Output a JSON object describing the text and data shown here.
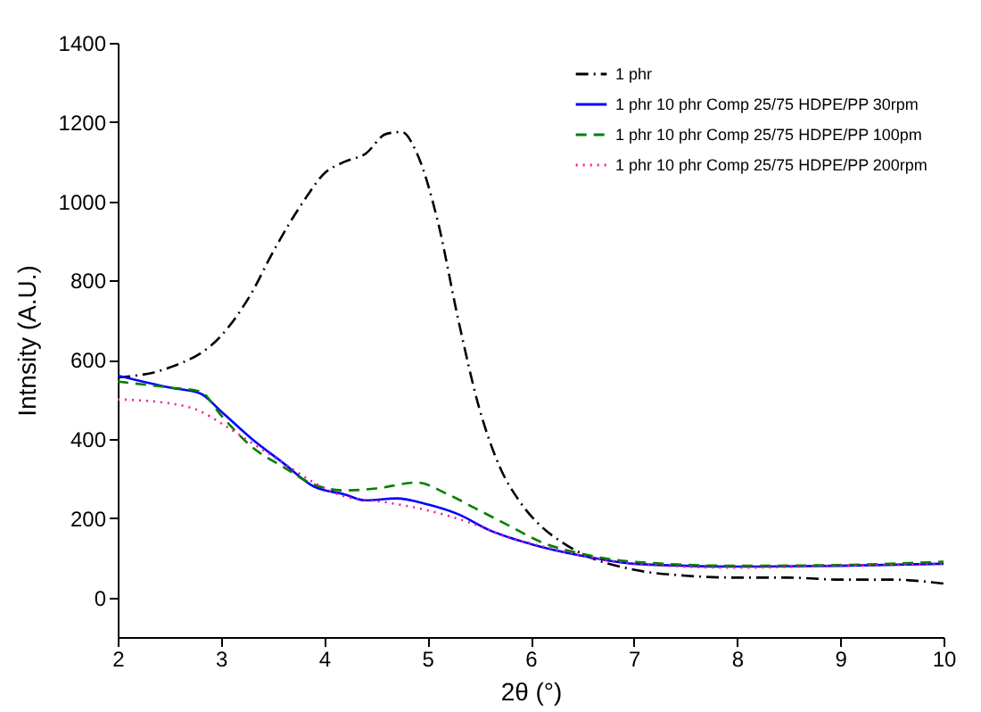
{
  "chart_data": {
    "type": "line",
    "xlabel": "2θ (°)",
    "ylabel": "Intnsity (A.U.)",
    "xlim": [
      2,
      10
    ],
    "xticks": [
      2,
      3,
      4,
      5,
      6,
      7,
      8,
      9,
      10
    ],
    "ylim": [
      -100,
      1400
    ],
    "yticks": [
      0,
      200,
      400,
      600,
      800,
      1000,
      1200,
      1400
    ],
    "grid": false,
    "legend": "top right",
    "series": [
      {
        "name": "1 phr",
        "color": "#000000",
        "line_style": "dashdot",
        "x": [
          2,
          2.5,
          3,
          3.3,
          3.5,
          3.8,
          4,
          4.2,
          4.4,
          4.6,
          4.75,
          4.9,
          5.1,
          5.3,
          5.5,
          5.7,
          5.9,
          6.1,
          6.3,
          6.5,
          7,
          7.5,
          8,
          8.5,
          9,
          9.5,
          10
        ],
        "values": [
          555,
          580,
          660,
          770,
          870,
          1000,
          1070,
          1100,
          1120,
          1170,
          1175,
          1120,
          950,
          700,
          480,
          330,
          240,
          180,
          140,
          110,
          70,
          55,
          50,
          50,
          45,
          45,
          35
        ]
      },
      {
        "name": "1 phr 10 phr Comp 25/75 HDPE/PP 30rpm",
        "color": "#0000ff",
        "line_style": "solid",
        "x": [
          2,
          2.5,
          2.8,
          3,
          3.3,
          3.6,
          3.9,
          4.2,
          4.4,
          4.7,
          5,
          5.3,
          5.6,
          6,
          6.5,
          7,
          7.5,
          8,
          9,
          10
        ],
        "values": [
          560,
          530,
          515,
          470,
          400,
          340,
          280,
          260,
          245,
          250,
          235,
          210,
          170,
          135,
          105,
          85,
          80,
          78,
          80,
          85
        ]
      },
      {
        "name": "1 phr 10 phr Comp 25/75 HDPE/PP 100pm",
        "color": "#008000",
        "line_style": "dashed",
        "x": [
          2,
          2.5,
          2.8,
          3,
          3.3,
          3.6,
          3.9,
          4.2,
          4.5,
          4.9,
          5.2,
          5.5,
          5.8,
          6.1,
          6.5,
          7,
          8,
          9,
          10
        ],
        "values": [
          545,
          530,
          520,
          460,
          380,
          330,
          285,
          270,
          275,
          290,
          260,
          220,
          180,
          140,
          110,
          90,
          80,
          82,
          90
        ]
      },
      {
        "name": "1 phr 10 phr Comp 25/75 HDPE/PP 200rpm",
        "color": "#ff1493",
        "line_style": "dotted",
        "x": [
          2,
          2.5,
          2.8,
          3,
          3.3,
          3.6,
          3.9,
          4.2,
          4.6,
          5,
          5.4,
          5.8,
          6.1,
          6.5,
          7,
          8,
          9,
          10
        ],
        "values": [
          500,
          490,
          470,
          440,
          390,
          340,
          290,
          255,
          240,
          220,
          190,
          150,
          130,
          105,
          85,
          75,
          80,
          85
        ]
      }
    ]
  }
}
